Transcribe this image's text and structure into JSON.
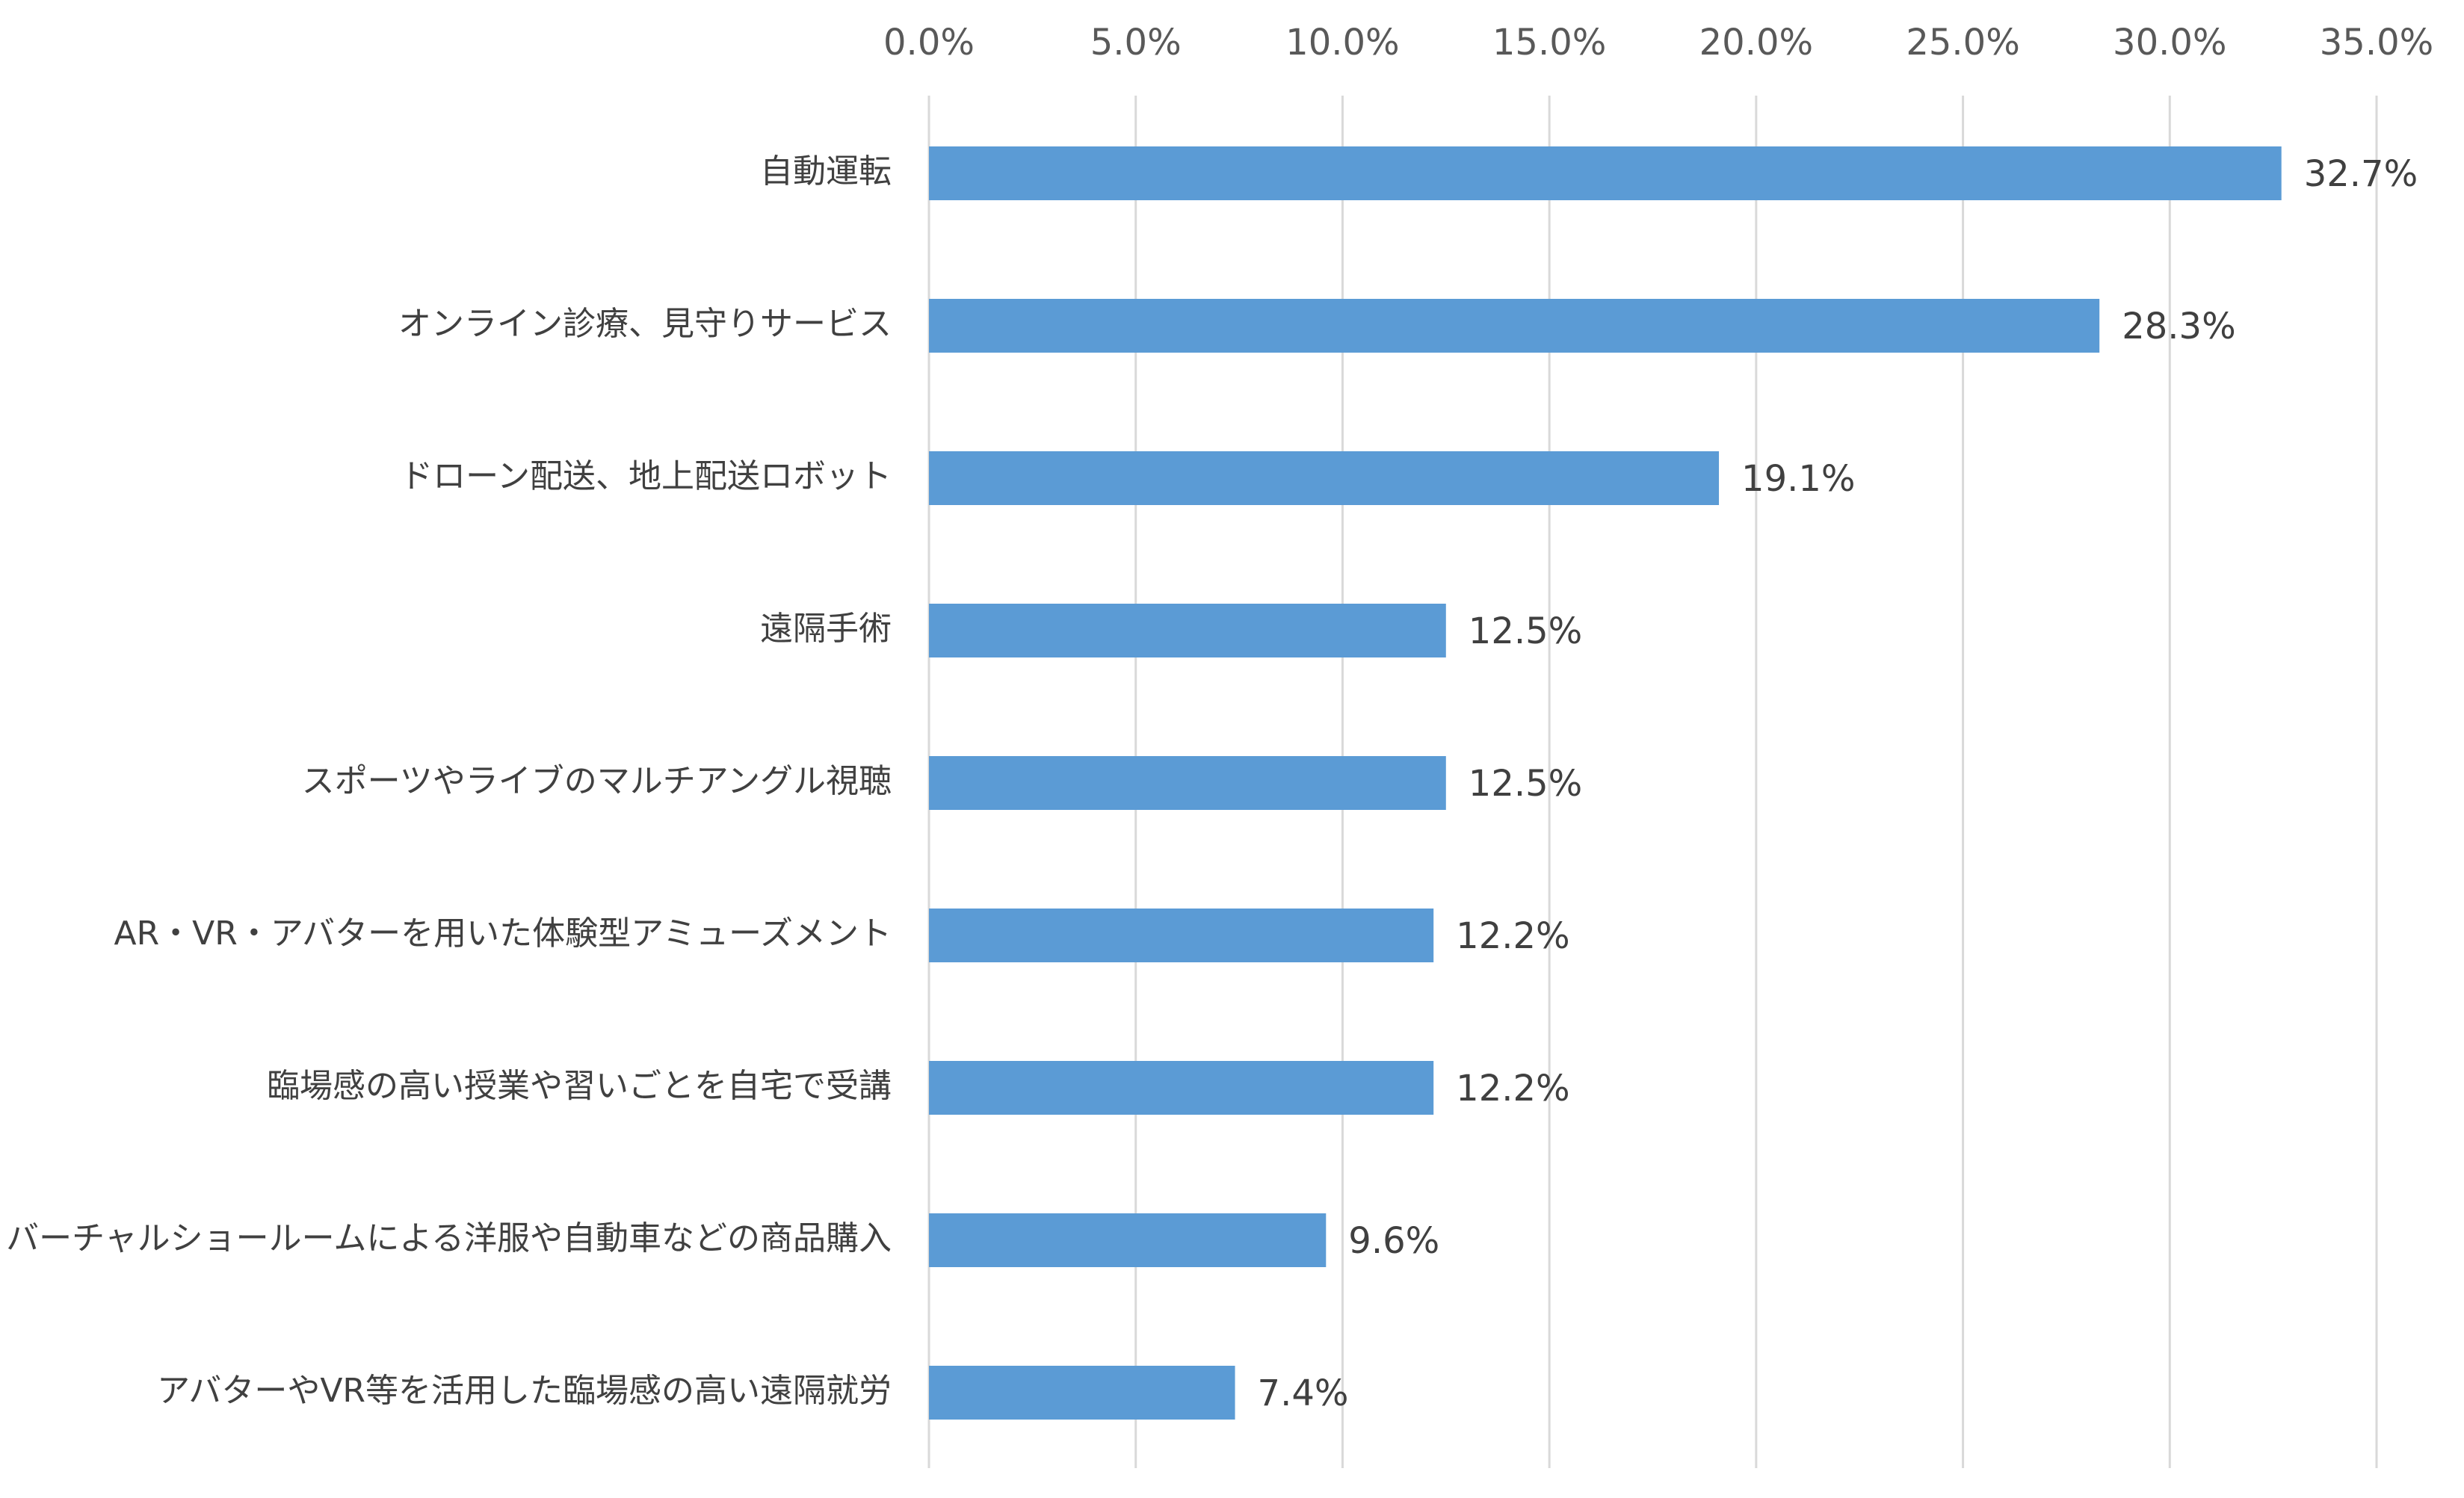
{
  "chart_data": {
    "type": "bar",
    "orientation": "horizontal",
    "categories": [
      "自動運転",
      "オンライン診療、見守りサービス",
      "ドローン配送、地上配送ロボット",
      "遠隔手術",
      "スポーツやライブのマルチアングル視聴",
      "AR・VR・アバターを用いた体験型アミューズメント",
      "臨場感の高い授業や習いごとを自宅で受講",
      "バーチャルショールームによる洋服や自動車などの商品購入",
      "アバターやVR等を活用した臨場感の高い遠隔就労"
    ],
    "values": [
      32.7,
      28.3,
      19.1,
      12.5,
      12.5,
      12.2,
      12.2,
      9.6,
      7.4
    ],
    "value_labels": [
      "32.7%",
      "28.3%",
      "19.1%",
      "12.5%",
      "12.5%",
      "12.2%",
      "12.2%",
      "9.6%",
      "7.4%"
    ],
    "xlim": [
      0,
      35
    ],
    "ticks": [
      0,
      5,
      10,
      15,
      20,
      25,
      30,
      35
    ],
    "tick_labels": [
      "0.0%",
      "5.0%",
      "10.0%",
      "15.0%",
      "20.0%",
      "25.0%",
      "30.0%",
      "35.0%"
    ],
    "x_axis_position": "top",
    "grid": true,
    "legend": "none",
    "colors": {
      "bar": "#5B9BD5",
      "grid": "#D9D9D9",
      "text": "#404040"
    }
  }
}
